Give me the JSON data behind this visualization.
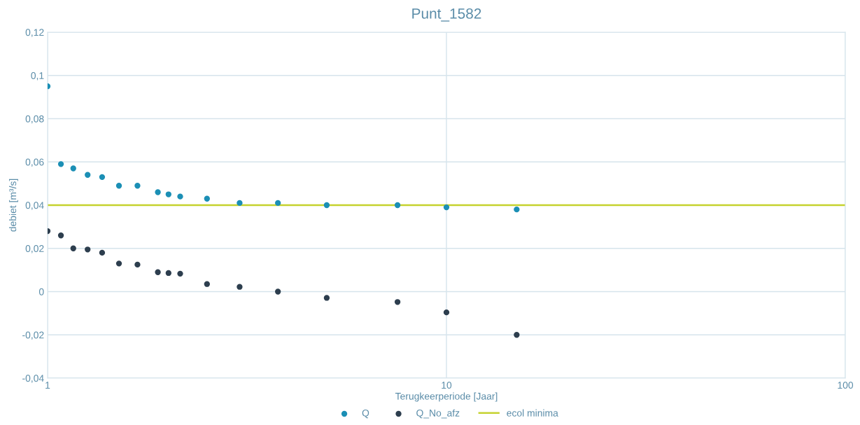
{
  "chart_data": {
    "type": "scatter",
    "title": "Punt_1582",
    "xlabel": "Terugkeerperiode [Jaar]",
    "ylabel": "debiet [m³/s]",
    "log": "x",
    "grid": true,
    "legend": "bottom",
    "xlim": [
      1,
      100
    ],
    "xticks": [
      1,
      10,
      100
    ],
    "ylim": [
      -0.04,
      0.12
    ],
    "yticks": [
      {
        "value": -0.04,
        "label": "-0,04"
      },
      {
        "value": -0.02,
        "label": "-0,02"
      },
      {
        "value": 0,
        "label": "0"
      },
      {
        "value": 0.02,
        "label": "0,02"
      },
      {
        "value": 0.04,
        "label": "0,04"
      },
      {
        "value": 0.06,
        "label": "0,06"
      },
      {
        "value": 0.08,
        "label": "0,08"
      },
      {
        "value": 0.1,
        "label": "0,1"
      },
      {
        "value": 0.12,
        "label": "0,12"
      }
    ],
    "x": [
      1,
      1.08,
      1.16,
      1.26,
      1.37,
      1.51,
      1.68,
      1.89,
      2.01,
      2.15,
      2.51,
      3.03,
      3.78,
      5.01,
      7.54,
      10,
      15.0
    ],
    "series": [
      {
        "name": "Q",
        "color": "#1b8fb5",
        "marker": "circle",
        "values": [
          0.095,
          0.059,
          0.057,
          0.054,
          0.053,
          0.049,
          0.049,
          0.046,
          0.045,
          0.044,
          0.043,
          0.041,
          0.041,
          0.04,
          0.04,
          0.039,
          0.038
        ]
      },
      {
        "name": "Q_No_afz",
        "color": "#2d3e4e",
        "marker": "circle",
        "values": [
          0.028,
          0.026,
          0.02,
          0.0195,
          0.018,
          0.013,
          0.0125,
          0.009,
          0.0086,
          0.0083,
          0.0035,
          0.0022,
          0.0,
          -0.0029,
          -0.0048,
          -0.0096,
          -0.02
        ]
      },
      {
        "name": "ecol minima",
        "type": "line",
        "marker": "none",
        "color": "#c5d22e",
        "x": [
          1,
          100
        ],
        "values": [
          0.04,
          0.04
        ]
      }
    ]
  }
}
